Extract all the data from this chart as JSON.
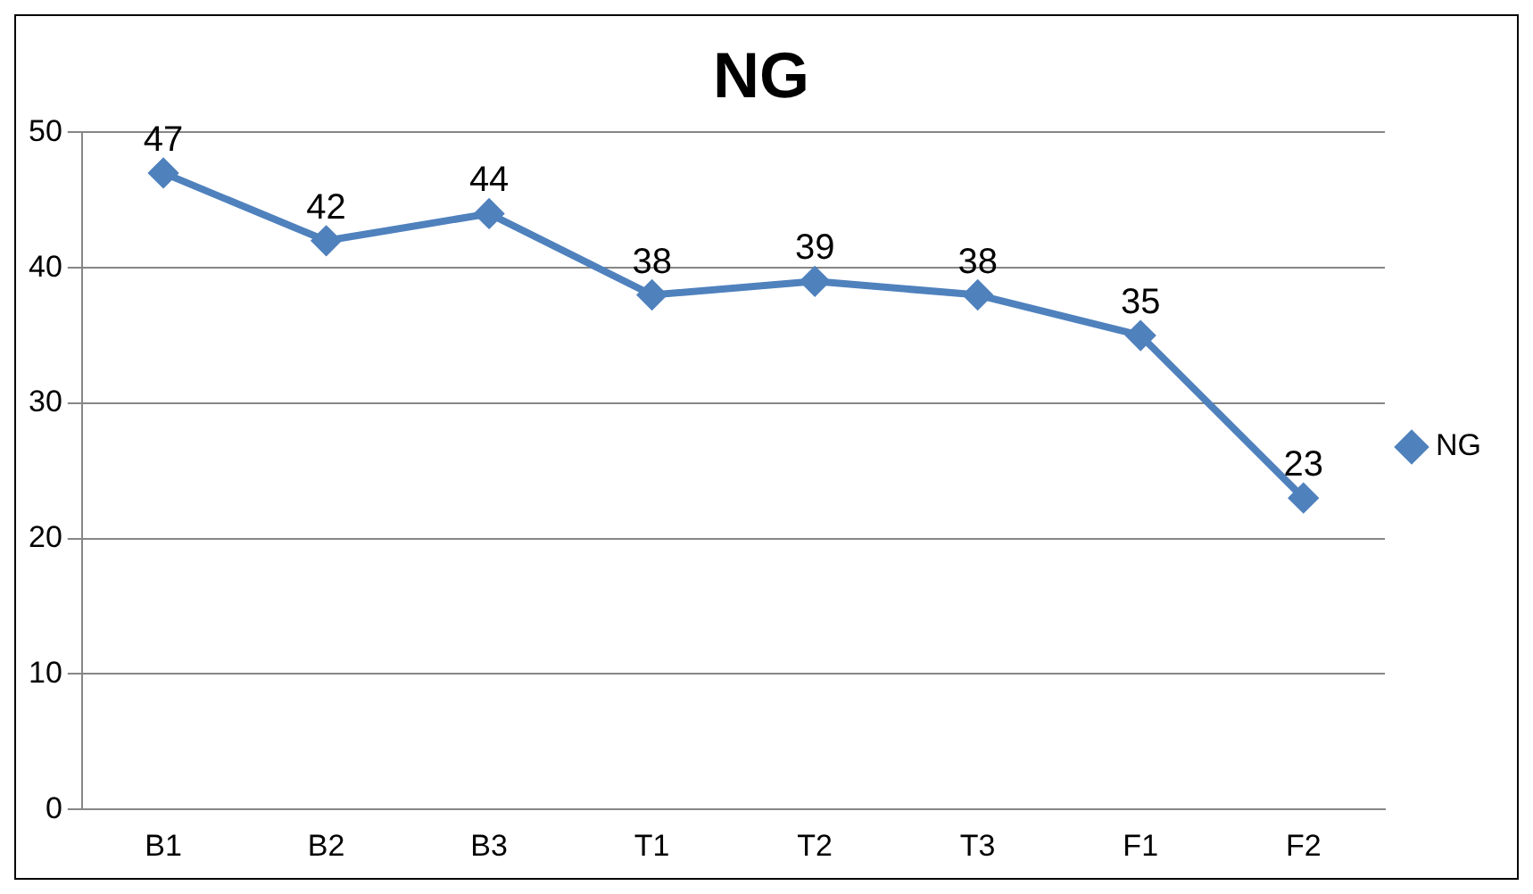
{
  "chart_data": {
    "type": "line",
    "title": "NG",
    "categories": [
      "B1",
      "B2",
      "B3",
      "T1",
      "T2",
      "T3",
      "F1",
      "F2"
    ],
    "series": [
      {
        "name": "NG",
        "color": "#4f81bd",
        "values": [
          47,
          42,
          44,
          38,
          39,
          38,
          35,
          23
        ]
      }
    ],
    "data_labels": true,
    "ylim": [
      0,
      50
    ],
    "yticks": [
      0,
      10,
      20,
      30,
      40,
      50
    ],
    "grid": "y",
    "legend": "right",
    "marker": "diamond",
    "line_style": "solid"
  }
}
